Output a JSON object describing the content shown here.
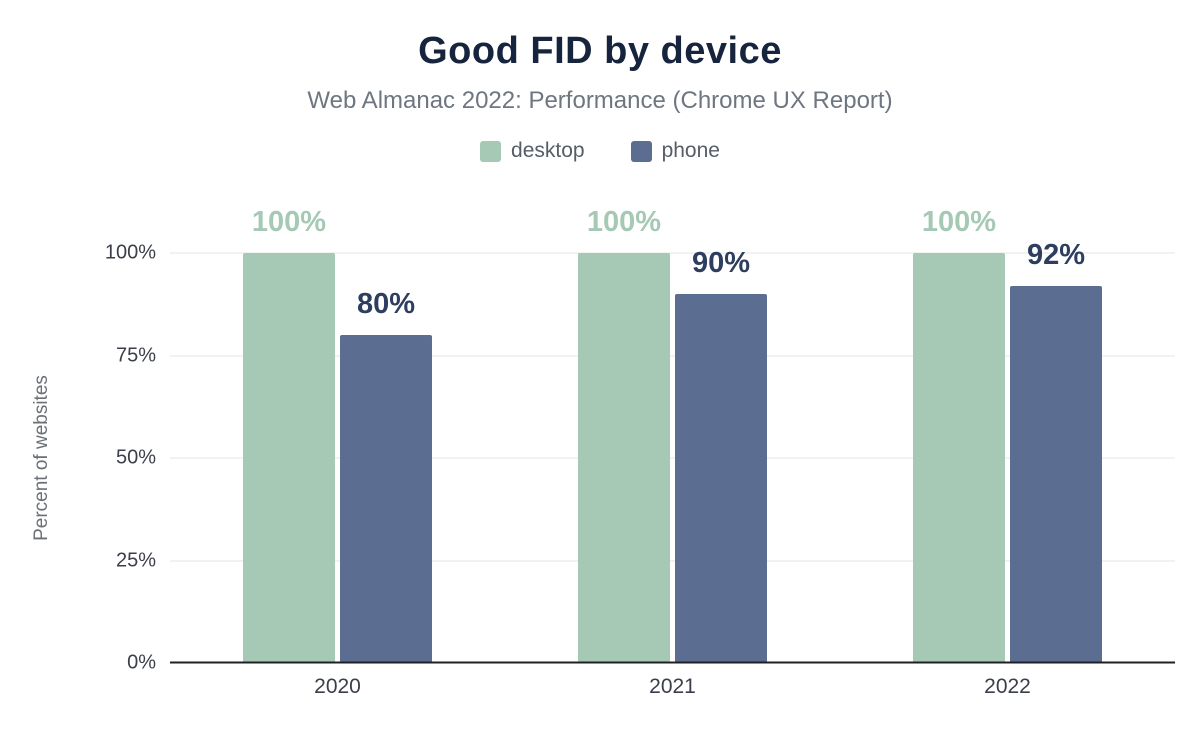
{
  "header": {
    "title": "Good FID by device",
    "subtitle": "Web Almanac 2022: Performance (Chrome UX Report)"
  },
  "chart_data": {
    "type": "bar",
    "title": "Good FID by device",
    "subtitle": "Web Almanac 2022: Performance (Chrome UX Report)",
    "categories": [
      "2020",
      "2021",
      "2022"
    ],
    "series": [
      {
        "name": "desktop",
        "values": [
          100,
          100,
          100
        ],
        "labels": [
          "100%",
          "100%",
          "100%"
        ],
        "color": "#a5c9b4",
        "label_color": "#a5c9b4"
      },
      {
        "name": "phone",
        "values": [
          80,
          90,
          92
        ],
        "labels": [
          "80%",
          "90%",
          "92%"
        ],
        "color": "#5b6d90",
        "label_color": "#2d3e5e"
      }
    ],
    "xlabel": "",
    "ylabel": "Percent of websites",
    "ylim": [
      0,
      100
    ],
    "yticks": [
      {
        "value": 0,
        "label": "0%"
      },
      {
        "value": 25,
        "label": "25%"
      },
      {
        "value": 50,
        "label": "50%"
      },
      {
        "value": 75,
        "label": "75%"
      },
      {
        "value": 100,
        "label": "100%"
      }
    ],
    "grid": true,
    "legend_position": "top"
  },
  "colors": {
    "title_text": "#16243d",
    "subtitle_text": "#6e7680",
    "gridline": "#e4e4e4",
    "axis_line": "#1f2023",
    "tick_text": "#3b3f49"
  }
}
